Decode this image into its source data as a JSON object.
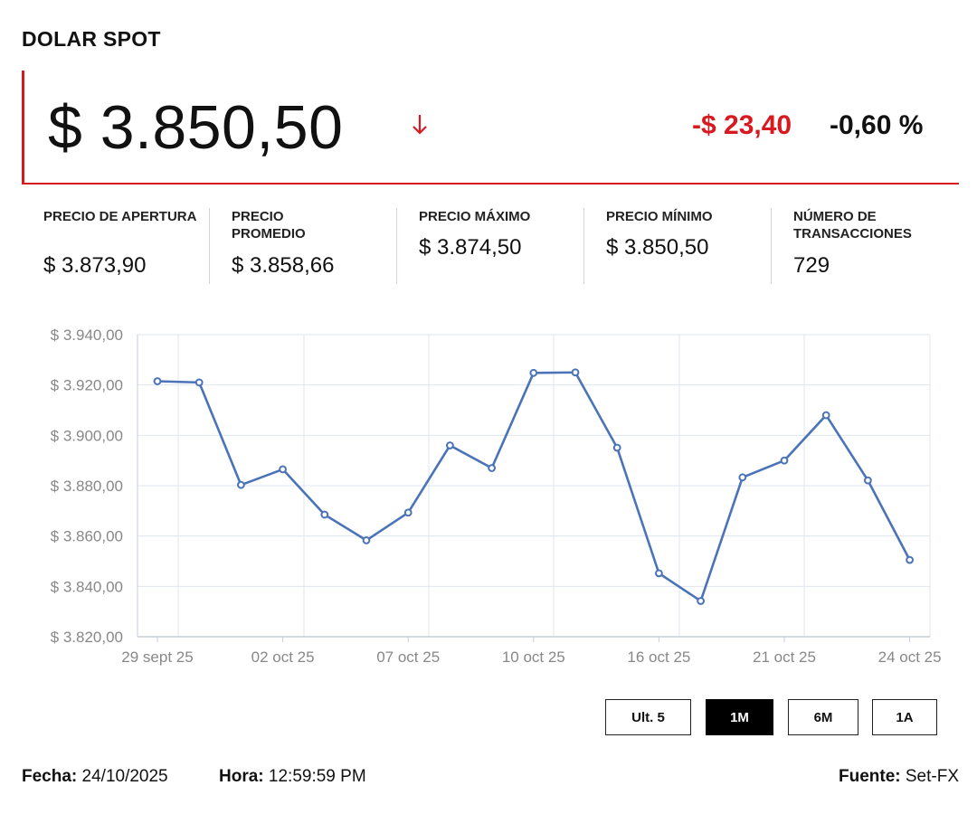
{
  "header": {
    "title": "DOLAR SPOT"
  },
  "quote": {
    "price": "$ 3.850,50",
    "direction": "down",
    "change": "-$ 23,40",
    "change_pct": "-0,60 %",
    "down_color": "#d71920"
  },
  "stats": [
    {
      "label": "PRECIO DE APERTURA",
      "value": "$ 3.873,90"
    },
    {
      "label": "PRECIO PROMEDIO",
      "value": "$ 3.858,66"
    },
    {
      "label": "PRECIO MÁXIMO",
      "value": "$ 3.874,50"
    },
    {
      "label": "PRECIO MÍNIMO",
      "value": "$ 3.850,50"
    },
    {
      "label": "NÚMERO DE TRANSACCIONES",
      "value": "729"
    }
  ],
  "chart_data": {
    "type": "line",
    "title": "",
    "xlabel": "",
    "ylabel": "",
    "ylim": [
      3820,
      3940
    ],
    "y_ticks": [
      "$ 3.940,00",
      "$ 3.920,00",
      "$ 3.900,00",
      "$ 3.880,00",
      "$ 3.860,00",
      "$ 3.840,00",
      "$ 3.820,00"
    ],
    "y_tick_values": [
      3940,
      3920,
      3900,
      3880,
      3860,
      3840,
      3820
    ],
    "x_tick_labels": [
      "29 sept 25",
      "02 oct 25",
      "07 oct 25",
      "10 oct 25",
      "16 oct 25",
      "21 oct 25",
      "24 oct 25"
    ],
    "grid": true,
    "line_color": "#4a73b8",
    "series": [
      {
        "x": [
          "29 sept 25",
          "30 sept 25",
          "01 oct 25",
          "02 oct 25",
          "03 oct 25",
          "06 oct 25",
          "07 oct 25",
          "08 oct 25",
          "09 oct 25",
          "10 oct 25",
          "14 oct 25",
          "15 oct 25",
          "16 oct 25",
          "17 oct 25",
          "20 oct 25",
          "21 oct 25",
          "22 oct 25",
          "23 oct 25",
          "24 oct 25"
        ],
        "values": [
          3921.5,
          3921.0,
          3880.3,
          3886.5,
          3868.5,
          3858.3,
          3869.3,
          3896.0,
          3887.0,
          3924.8,
          3925.0,
          3895.1,
          3845.2,
          3834.2,
          3883.3,
          3890.0,
          3908.0,
          3882.1,
          3850.5
        ]
      }
    ]
  },
  "range_buttons": [
    {
      "label": "Ult. 5",
      "active": false
    },
    {
      "label": "1M",
      "active": true
    },
    {
      "label": "6M",
      "active": false
    },
    {
      "label": "1A",
      "active": false
    }
  ],
  "footer": {
    "date_label": "Fecha:",
    "date_value": "24/10/2025",
    "time_label": "Hora:",
    "time_value": "12:59:59 PM",
    "source_label": "Fuente:",
    "source_value": "Set-FX"
  }
}
